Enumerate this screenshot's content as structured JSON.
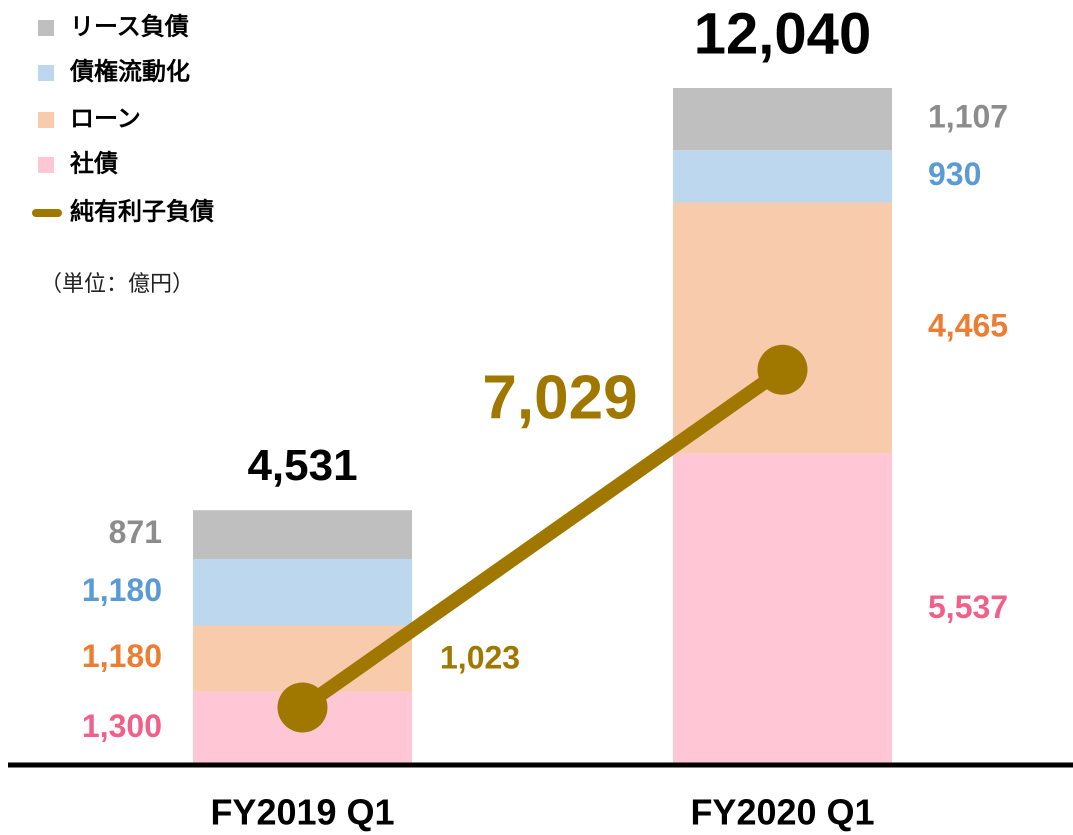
{
  "chart_data": {
    "type": "stacked_bar_line",
    "unit": "（単位：億円）",
    "categories": [
      "FY2019 Q1",
      "FY2020 Q1"
    ],
    "series": [
      {
        "name": "社債",
        "color": "#ffc7d6",
        "label_color": "#f0608a",
        "values": [
          1300,
          5537
        ],
        "value_labels": [
          "1,300",
          "5,537"
        ]
      },
      {
        "name": "ローン",
        "color": "#f8cbad",
        "label_color": "#ed7d31",
        "values": [
          1180,
          4465
        ],
        "value_labels": [
          "1,180",
          "4,465"
        ]
      },
      {
        "name": "債権流動化",
        "color": "#bdd7ee",
        "label_color": "#5b9bd5",
        "values": [
          1180,
          930
        ],
        "value_labels": [
          "1,180",
          "930"
        ]
      },
      {
        "name": "リース負債",
        "color": "#bfbfbf",
        "label_color": "#8c8c8c",
        "values": [
          871,
          1107
        ],
        "value_labels": [
          "871",
          "1,107"
        ]
      }
    ],
    "totals": [
      4531,
      12040
    ],
    "total_labels": [
      "4,531",
      "12,040"
    ],
    "line": {
      "name": "純有利子負債",
      "color": "#a07800",
      "values": [
        1023,
        7029
      ],
      "value_labels": [
        "1,023",
        "7,029"
      ]
    }
  }
}
